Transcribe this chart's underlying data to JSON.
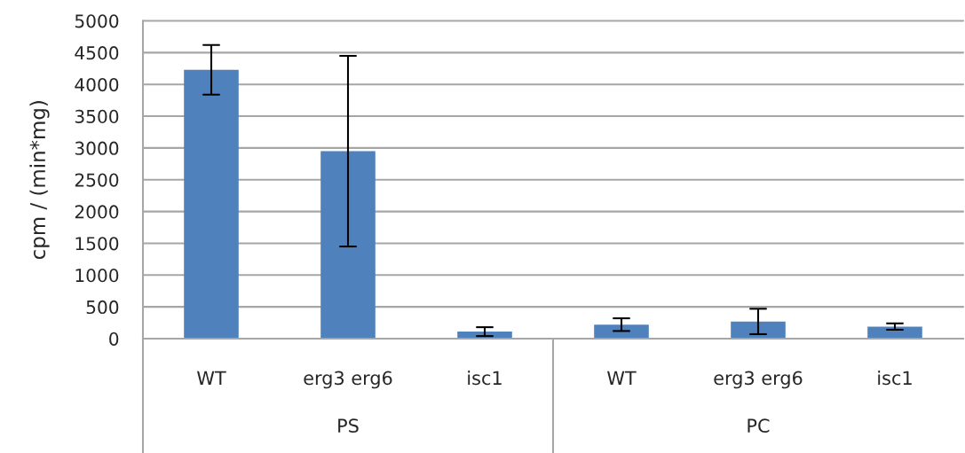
{
  "chart_data": {
    "type": "bar",
    "ylabel": "cpm / (min*mg)",
    "categories": [
      "WT",
      "erg3 erg6",
      "isc1",
      "WT",
      "erg3 erg6",
      "isc1"
    ],
    "values": [
      4230,
      2950,
      110,
      220,
      270,
      190
    ],
    "errors": [
      390,
      1500,
      70,
      100,
      200,
      50
    ],
    "color": "#4f81bd",
    "ylim": [
      0,
      5000
    ],
    "yticks": [
      0,
      500,
      1000,
      1500,
      2000,
      2500,
      3000,
      3500,
      4000,
      4500,
      5000
    ],
    "grid": "y",
    "annotations": [
      "PS",
      "PC"
    ]
  }
}
